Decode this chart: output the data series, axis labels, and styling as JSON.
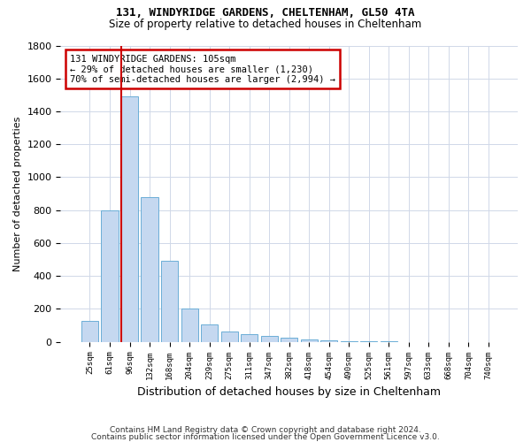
{
  "title1": "131, WINDYRIDGE GARDENS, CHELTENHAM, GL50 4TA",
  "title2": "Size of property relative to detached houses in Cheltenham",
  "xlabel": "Distribution of detached houses by size in Cheltenham",
  "ylabel": "Number of detached properties",
  "categories": [
    "25sqm",
    "61sqm",
    "96sqm",
    "132sqm",
    "168sqm",
    "204sqm",
    "239sqm",
    "275sqm",
    "311sqm",
    "347sqm",
    "382sqm",
    "418sqm",
    "454sqm",
    "490sqm",
    "525sqm",
    "561sqm",
    "597sqm",
    "633sqm",
    "668sqm",
    "704sqm",
    "740sqm"
  ],
  "bar_heights": [
    125,
    800,
    1490,
    880,
    490,
    205,
    105,
    65,
    45,
    35,
    25,
    15,
    8,
    5,
    3,
    2,
    1,
    0,
    0,
    0,
    0
  ],
  "bar_color": "#c5d8f0",
  "bar_edge_color": "#6baed6",
  "highlight_line_index": 2,
  "annotation_text": "131 WINDYRIDGE GARDENS: 105sqm\n← 29% of detached houses are smaller (1,230)\n70% of semi-detached houses are larger (2,994) →",
  "annotation_box_color": "#ffffff",
  "annotation_box_edge": "#cc0000",
  "annotation_line_color": "#cc0000",
  "grid_color": "#d0d8e8",
  "background_color": "#ffffff",
  "footer1": "Contains HM Land Registry data © Crown copyright and database right 2024.",
  "footer2": "Contains public sector information licensed under the Open Government Licence v3.0.",
  "ylim": [
    0,
    1800
  ],
  "yticks": [
    0,
    200,
    400,
    600,
    800,
    1000,
    1200,
    1400,
    1600,
    1800
  ]
}
